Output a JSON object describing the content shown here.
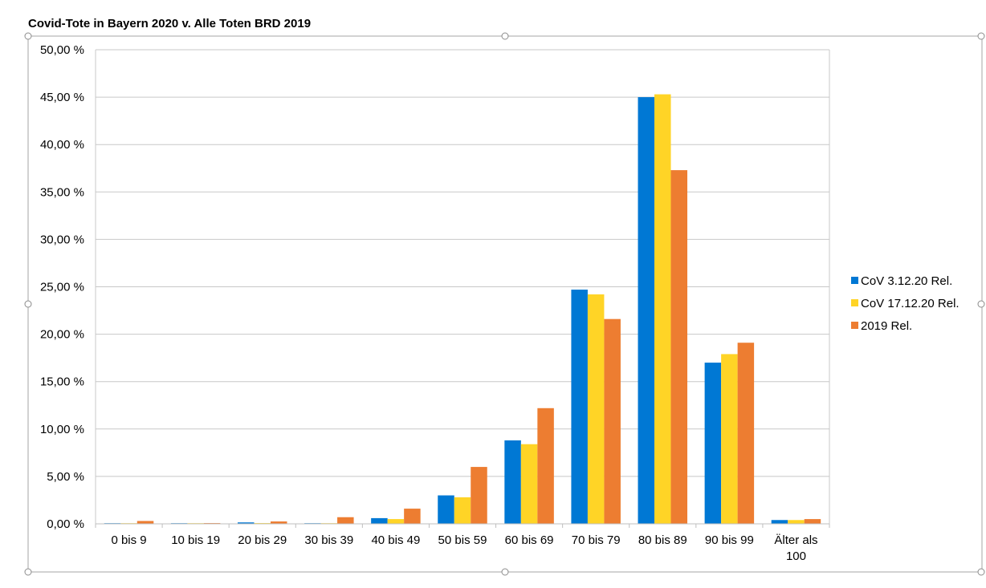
{
  "chart_data": {
    "type": "bar",
    "title": "Covid-Tote in Bayern 2020 v. Alle Toten BRD 2019",
    "xlabel": "",
    "ylabel": "",
    "categories": [
      "0 bis 9",
      "10 bis 19",
      "20 bis 29",
      "30 bis 39",
      "40 bis 49",
      "50 bis 59",
      "60 bis 69",
      "70 bis 79",
      "80 bis 89",
      "90 bis 99",
      "Älter als 100"
    ],
    "ylim": [
      0,
      50
    ],
    "yticks": [
      "0,00 %",
      "5,00 %",
      "10,00 %",
      "15,00 %",
      "20,00 %",
      "25,00 %",
      "30,00 %",
      "35,00 %",
      "40,00 %",
      "45,00 %",
      "50,00 %"
    ],
    "grid": true,
    "legend_position": "right",
    "series": [
      {
        "name": "CoV 3.12.20 Rel.",
        "color": "#0078d4",
        "values": [
          0.05,
          0.05,
          0.15,
          0.05,
          0.6,
          3.0,
          8.8,
          24.7,
          45.0,
          17.0,
          0.4
        ]
      },
      {
        "name": "CoV 17.12.20 Rel.",
        "color": "#ffd426",
        "values": [
          0.03,
          0.03,
          0.08,
          0.04,
          0.5,
          2.8,
          8.4,
          24.2,
          45.3,
          17.9,
          0.4
        ]
      },
      {
        "name": "2019 Rel.",
        "color": "#ed7d31",
        "values": [
          0.3,
          0.08,
          0.25,
          0.7,
          1.6,
          6.0,
          12.2,
          21.6,
          37.3,
          19.1,
          0.5
        ]
      }
    ]
  }
}
